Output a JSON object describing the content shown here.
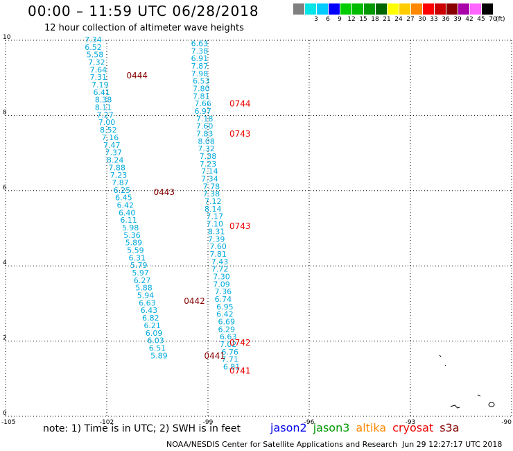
{
  "header": {
    "title": "00:00 – 11:59 UTC 06/28/2018",
    "subtitle": "12 hour collection of altimeter wave heights"
  },
  "color_scale": {
    "unit": "(ft)",
    "bins": [
      {
        "label": "",
        "color": "#808080"
      },
      {
        "label": "3",
        "color": "#00e6e6"
      },
      {
        "label": "6",
        "color": "#00ccff"
      },
      {
        "label": "9",
        "color": "#0000ff"
      },
      {
        "label": "12",
        "color": "#00cc00"
      },
      {
        "label": "15",
        "color": "#00bb00"
      },
      {
        "label": "18",
        "color": "#009900"
      },
      {
        "label": "21",
        "color": "#006600"
      },
      {
        "label": "24",
        "color": "#ffff00"
      },
      {
        "label": "27",
        "color": "#ffcc00"
      },
      {
        "label": "30",
        "color": "#ff8800"
      },
      {
        "label": "33",
        "color": "#ff0000"
      },
      {
        "label": "36",
        "color": "#cc0000"
      },
      {
        "label": "39",
        "color": "#880000"
      },
      {
        "label": "42",
        "color": "#aa00aa"
      },
      {
        "label": "45",
        "color": "#ff66ff"
      },
      {
        "label": "70",
        "color": "#000000"
      }
    ]
  },
  "chart_data": {
    "type": "scatter",
    "title": "00:00 – 11:59 UTC 06/28/2018",
    "subtitle": "12 hour collection of altimeter wave heights",
    "xlim": [
      -105,
      -90
    ],
    "ylim": [
      0,
      10
    ],
    "xticks": [
      "-105",
      "-102",
      "-99",
      "-96",
      "-93",
      "-90"
    ],
    "yticks": [
      "0",
      "2",
      "4",
      "6",
      "8",
      "10"
    ],
    "grid": true,
    "value_unit": "ft",
    "series": [
      {
        "name": "jason2",
        "color": "#00aadd",
        "points": [
          {
            "x": -102.4,
            "y": 10.0,
            "v": "7.34"
          },
          {
            "x": -102.4,
            "y": 9.8,
            "v": "6.52"
          },
          {
            "x": -102.35,
            "y": 9.6,
            "v": "5.58"
          },
          {
            "x": -102.3,
            "y": 9.4,
            "v": "7.32"
          },
          {
            "x": -102.25,
            "y": 9.2,
            "v": "7.64"
          },
          {
            "x": -102.25,
            "y": 9.0,
            "v": "7.31"
          },
          {
            "x": -102.2,
            "y": 8.8,
            "v": "7.19"
          },
          {
            "x": -102.15,
            "y": 8.6,
            "v": "6.41"
          },
          {
            "x": -102.1,
            "y": 8.4,
            "v": "8.38"
          },
          {
            "x": -102.1,
            "y": 8.2,
            "v": "8.11"
          },
          {
            "x": -102.05,
            "y": 8.0,
            "v": "7.27"
          },
          {
            "x": -102.0,
            "y": 7.8,
            "v": "7.00"
          },
          {
            "x": -101.95,
            "y": 7.6,
            "v": "8.52"
          },
          {
            "x": -101.9,
            "y": 7.4,
            "v": "7.16"
          },
          {
            "x": -101.85,
            "y": 7.2,
            "v": "7.47"
          },
          {
            "x": -101.8,
            "y": 7.0,
            "v": "7.37"
          },
          {
            "x": -101.75,
            "y": 6.8,
            "v": "8.24"
          },
          {
            "x": -101.7,
            "y": 6.6,
            "v": "7.88"
          },
          {
            "x": -101.65,
            "y": 6.4,
            "v": "7.23"
          },
          {
            "x": -101.6,
            "y": 6.2,
            "v": "7.87"
          },
          {
            "x": -101.55,
            "y": 6.0,
            "v": "6.25"
          },
          {
            "x": -101.5,
            "y": 5.8,
            "v": "6.45"
          },
          {
            "x": -101.45,
            "y": 5.6,
            "v": "6.42"
          },
          {
            "x": -101.4,
            "y": 5.4,
            "v": "6.40"
          },
          {
            "x": -101.35,
            "y": 5.2,
            "v": "6.11"
          },
          {
            "x": -101.3,
            "y": 5.0,
            "v": "5.98"
          },
          {
            "x": -101.25,
            "y": 4.8,
            "v": "5.36"
          },
          {
            "x": -101.2,
            "y": 4.6,
            "v": "5.89"
          },
          {
            "x": -101.15,
            "y": 4.4,
            "v": "5.59"
          },
          {
            "x": -101.1,
            "y": 4.2,
            "v": "6.31"
          },
          {
            "x": -101.05,
            "y": 4.0,
            "v": "5.79"
          },
          {
            "x": -101.0,
            "y": 3.8,
            "v": "5.97"
          },
          {
            "x": -100.95,
            "y": 3.6,
            "v": "6.27"
          },
          {
            "x": -100.9,
            "y": 3.4,
            "v": "5.88"
          },
          {
            "x": -100.85,
            "y": 3.2,
            "v": "5.94"
          },
          {
            "x": -100.8,
            "y": 3.0,
            "v": "6.63"
          },
          {
            "x": -100.75,
            "y": 2.8,
            "v": "6.43"
          },
          {
            "x": -100.7,
            "y": 2.6,
            "v": "6.82"
          },
          {
            "x": -100.65,
            "y": 2.4,
            "v": "6.21"
          },
          {
            "x": -100.6,
            "y": 2.2,
            "v": "6.09"
          },
          {
            "x": -100.55,
            "y": 2.0,
            "v": "6.03"
          },
          {
            "x": -100.5,
            "y": 1.8,
            "v": "6.51"
          },
          {
            "x": -100.45,
            "y": 1.6,
            "v": "5.89"
          },
          {
            "x": -99.25,
            "y": 9.9,
            "v": "6.63"
          },
          {
            "x": -99.25,
            "y": 9.7,
            "v": "7.38"
          },
          {
            "x": -99.25,
            "y": 9.5,
            "v": "6.91"
          },
          {
            "x": -99.25,
            "y": 9.3,
            "v": "7.87"
          },
          {
            "x": -99.25,
            "y": 9.1,
            "v": "7.98"
          },
          {
            "x": -99.2,
            "y": 8.9,
            "v": "6.53"
          },
          {
            "x": -99.2,
            "y": 8.7,
            "v": "7.80"
          },
          {
            "x": -99.2,
            "y": 8.5,
            "v": "7.81"
          },
          {
            "x": -99.15,
            "y": 8.3,
            "v": "7.66"
          },
          {
            "x": -99.15,
            "y": 8.1,
            "v": "6.97"
          },
          {
            "x": -99.1,
            "y": 7.9,
            "v": "7.18"
          },
          {
            "x": -99.1,
            "y": 7.7,
            "v": "7.60"
          },
          {
            "x": -99.1,
            "y": 7.5,
            "v": "7.83"
          },
          {
            "x": -99.05,
            "y": 7.3,
            "v": "8.08"
          },
          {
            "x": -99.05,
            "y": 7.1,
            "v": "7.32"
          },
          {
            "x": -99.0,
            "y": 6.9,
            "v": "7.38"
          },
          {
            "x": -99.0,
            "y": 6.7,
            "v": "7.23"
          },
          {
            "x": -98.95,
            "y": 6.5,
            "v": "7.14"
          },
          {
            "x": -98.95,
            "y": 6.3,
            "v": "7.34"
          },
          {
            "x": -98.9,
            "y": 6.1,
            "v": "7.78"
          },
          {
            "x": -98.9,
            "y": 5.9,
            "v": "7.38"
          },
          {
            "x": -98.85,
            "y": 5.7,
            "v": "7.12"
          },
          {
            "x": -98.85,
            "y": 5.5,
            "v": "8.14"
          },
          {
            "x": -98.8,
            "y": 5.3,
            "v": "7.17"
          },
          {
            "x": -98.8,
            "y": 5.1,
            "v": "7.10"
          },
          {
            "x": -98.75,
            "y": 4.9,
            "v": "8.31"
          },
          {
            "x": -98.75,
            "y": 4.7,
            "v": "7.39"
          },
          {
            "x": -98.7,
            "y": 4.5,
            "v": "7.60"
          },
          {
            "x": -98.7,
            "y": 4.3,
            "v": "7.81"
          },
          {
            "x": -98.65,
            "y": 4.1,
            "v": "7.43"
          },
          {
            "x": -98.65,
            "y": 3.9,
            "v": "7.72"
          },
          {
            "x": -98.6,
            "y": 3.7,
            "v": "7.30"
          },
          {
            "x": -98.6,
            "y": 3.5,
            "v": "7.09"
          },
          {
            "x": -98.55,
            "y": 3.3,
            "v": "7.36"
          },
          {
            "x": -98.55,
            "y": 3.1,
            "v": "6.74"
          },
          {
            "x": -98.5,
            "y": 2.9,
            "v": "6.95"
          },
          {
            "x": -98.5,
            "y": 2.7,
            "v": "6.42"
          },
          {
            "x": -98.45,
            "y": 2.5,
            "v": "6.69"
          },
          {
            "x": -98.45,
            "y": 2.3,
            "v": "6.29"
          },
          {
            "x": -98.4,
            "y": 2.1,
            "v": "6.63"
          },
          {
            "x": -98.4,
            "y": 1.9,
            "v": "7.02"
          },
          {
            "x": -98.35,
            "y": 1.7,
            "v": "6.76"
          },
          {
            "x": -98.35,
            "y": 1.5,
            "v": "7.71"
          },
          {
            "x": -98.3,
            "y": 1.3,
            "v": "6.81"
          }
        ]
      }
    ],
    "time_labels": [
      {
        "x": -101.1,
        "y": 9.05,
        "text": "0444",
        "color": "#880000"
      },
      {
        "x": -100.3,
        "y": 5.95,
        "text": "0443",
        "color": "#880000"
      },
      {
        "x": -99.4,
        "y": 3.05,
        "text": "0442",
        "color": "#880000"
      },
      {
        "x": -98.8,
        "y": 1.6,
        "text": "0441",
        "color": "#880000"
      },
      {
        "x": -98.05,
        "y": 8.3,
        "text": "0744",
        "color": "#ee0000"
      },
      {
        "x": -98.05,
        "y": 7.5,
        "text": "0743",
        "color": "#ee0000"
      },
      {
        "x": -98.05,
        "y": 5.05,
        "text": "0743",
        "color": "#ee0000"
      },
      {
        "x": -98.05,
        "y": 1.95,
        "text": "0742",
        "color": "#ee0000"
      },
      {
        "x": -98.05,
        "y": 1.2,
        "text": "0741",
        "color": "#ee0000"
      }
    ]
  },
  "footer": {
    "note": "note: 1) Time is in UTC; 2) SWH is in feet",
    "satellites": [
      {
        "label": "jason2",
        "color": "#0000ee"
      },
      {
        "label": "jason3",
        "color": "#009900"
      },
      {
        "label": "altika",
        "color": "#ff8800"
      },
      {
        "label": "cryosat",
        "color": "#ee0000"
      },
      {
        "label": "s3a",
        "color": "#880000"
      }
    ],
    "credit": "NOAA/NESDIS Center for Satellite Applications and Research",
    "timestamp": "Jun 29 12:27:17 UTC 2018"
  }
}
